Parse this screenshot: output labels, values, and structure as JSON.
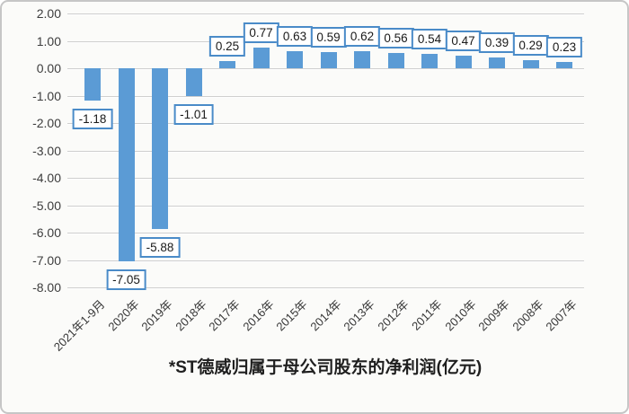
{
  "frame": {
    "background": "#fbfbf9",
    "border_color": "#c6c6c6"
  },
  "chart_data": {
    "type": "bar",
    "title": "*ST德威归属于母公司股东的净利润(亿元)",
    "categories": [
      "2021年1-9月",
      "2020年",
      "2019年",
      "2018年",
      "2017年",
      "2016年",
      "2015年",
      "2014年",
      "2013年",
      "2012年",
      "2011年",
      "2010年",
      "2009年",
      "2008年",
      "2007年"
    ],
    "values": [
      -1.18,
      -7.05,
      -5.88,
      -1.01,
      0.25,
      0.77,
      0.63,
      0.59,
      0.62,
      0.56,
      0.54,
      0.47,
      0.39,
      0.29,
      0.23
    ],
    "data_labels": [
      "-1.18",
      "-7.05",
      "-5.88",
      "-1.01",
      "0.25",
      "0.77",
      "0.63",
      "0.59",
      "0.62",
      "0.56",
      "0.54",
      "0.47",
      "0.39",
      "0.29",
      "0.23"
    ],
    "ylim": [
      -8,
      2
    ],
    "ytick_step": 1,
    "ytick_labels": [
      "2.00",
      "1.00",
      "0.00",
      "-1.00",
      "-2.00",
      "-3.00",
      "-4.00",
      "-5.00",
      "-6.00",
      "-7.00",
      "-8.00"
    ],
    "grid": true,
    "legend": "none",
    "xlabel": "",
    "ylabel": "",
    "bar_color": "#5B9BD5",
    "data_label_border_color": "#4A8BC8",
    "data_label_background": "#FFFFFF",
    "gridline_color": "#CFCFCF",
    "axis_text_color": "#3D3D3D"
  }
}
